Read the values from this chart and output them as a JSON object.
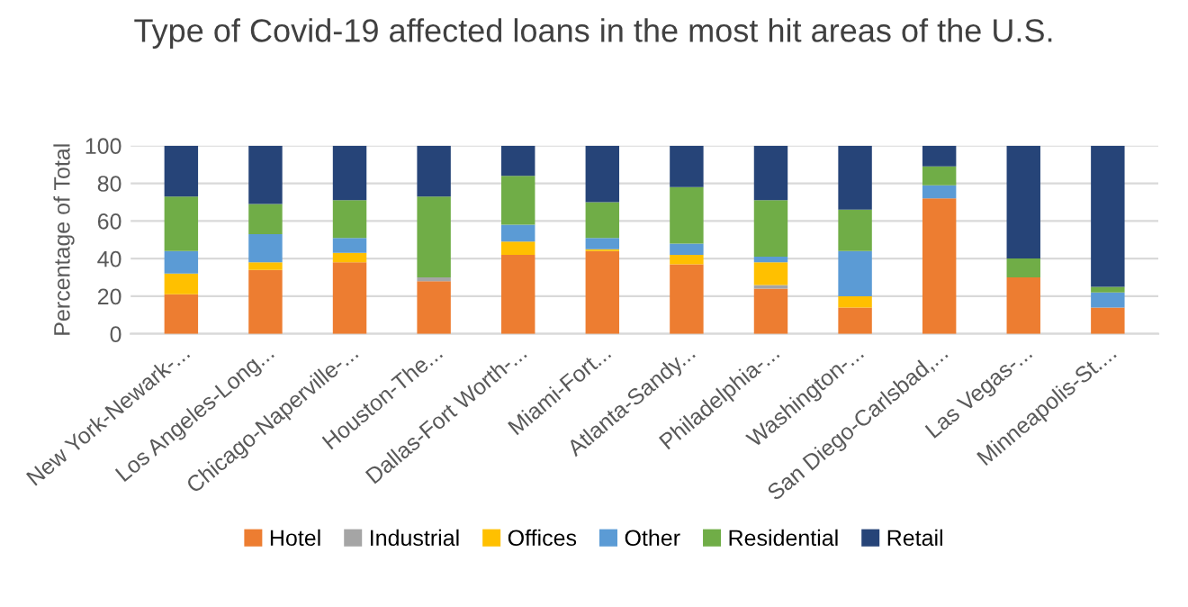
{
  "chart_data": {
    "type": "bar",
    "stacked": true,
    "title": "Type of Covid-19 affected loans in the most hit areas of the U.S.",
    "ylabel": "Percentage of Total",
    "categories": [
      "New York-Newark-...",
      "Los Angeles-Long...",
      "Chicago-Naperville-...",
      "Houston-The...",
      "Dallas-Fort Worth-...",
      "Miami-Fort...",
      "Atlanta-Sandy...",
      "Philadelphia-...",
      "Washington-...",
      "San Diego-Carlsbad,...",
      "Las Vegas-...",
      "Minneapolis-St...."
    ],
    "series": [
      {
        "name": "Hotel",
        "color": "#ed7d31",
        "values": [
          21,
          34,
          38,
          28,
          42,
          44,
          37,
          24,
          14,
          72,
          30,
          14
        ]
      },
      {
        "name": "Industrial",
        "color": "#a5a5a5",
        "values": [
          0,
          0,
          0,
          2,
          0,
          0,
          0,
          2,
          0,
          0,
          0,
          0
        ]
      },
      {
        "name": "Offices",
        "color": "#ffc000",
        "values": [
          11,
          4,
          5,
          0,
          7,
          1,
          5,
          12,
          6,
          0,
          0,
          0
        ]
      },
      {
        "name": "Other",
        "color": "#5b9bd5",
        "values": [
          12,
          15,
          8,
          0,
          9,
          6,
          6,
          3,
          24,
          7,
          0,
          8
        ]
      },
      {
        "name": "Residential",
        "color": "#70ad47",
        "values": [
          29,
          16,
          20,
          43,
          26,
          19,
          30,
          30,
          22,
          10,
          10,
          3
        ]
      },
      {
        "name": "Retail",
        "color": "#264478",
        "values": [
          27,
          31,
          29,
          27,
          16,
          30,
          22,
          29,
          34,
          11,
          60,
          75
        ]
      }
    ],
    "ylim": [
      0,
      100
    ],
    "yticks": [
      0,
      20,
      40,
      60,
      80,
      100
    ],
    "grid": "y",
    "legend": "bottom"
  }
}
